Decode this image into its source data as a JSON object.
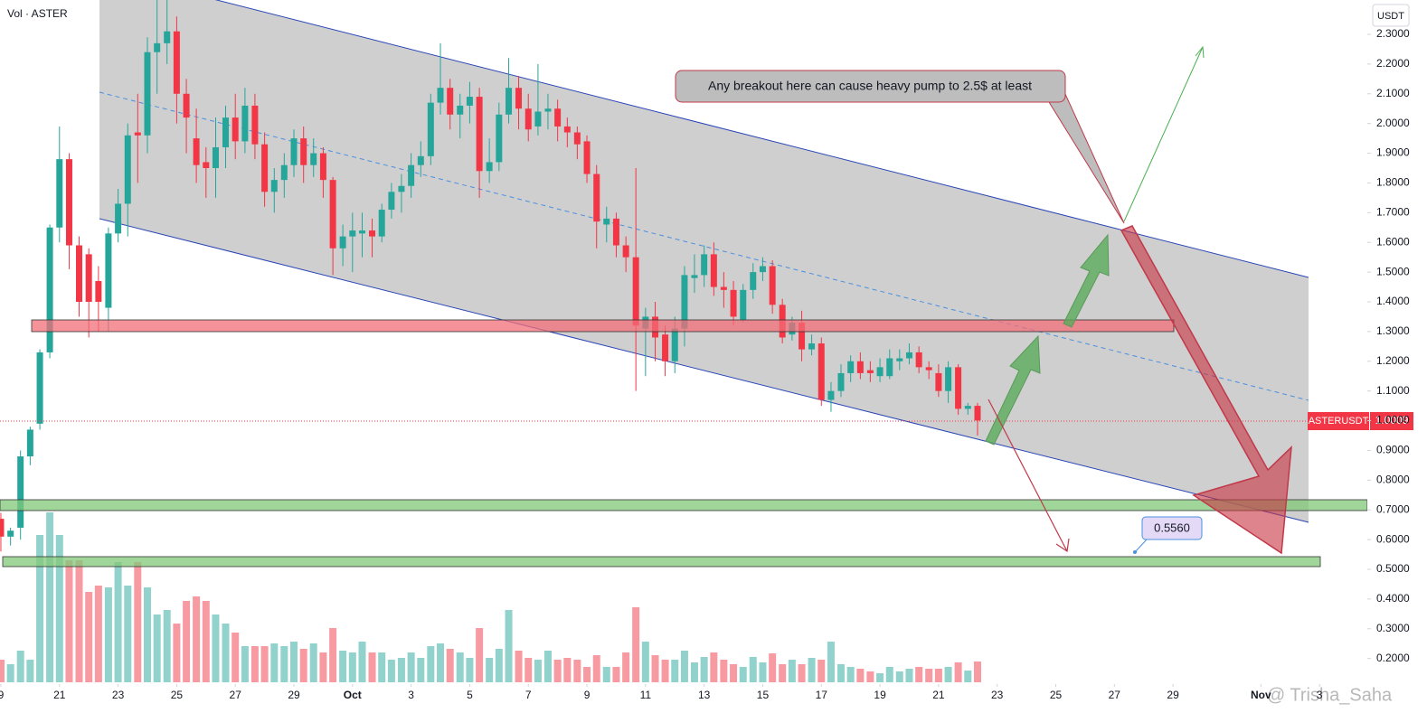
{
  "chart_data": {
    "type": "candlestick",
    "title": "Vol · ASTER",
    "y_axis_label": "USDT",
    "x": [
      19,
      19.33,
      19.67,
      20,
      20.33,
      20.67,
      21,
      21.33,
      21.67,
      22,
      22.33,
      22.67,
      23,
      23.33,
      23.67,
      24,
      24.33,
      24.67,
      25,
      25.33,
      25.67,
      26,
      26.33,
      26.67,
      27,
      27.33,
      27.67,
      28,
      28.33,
      28.67,
      29,
      29.33,
      29.67,
      30,
      30.33,
      30.67,
      31,
      31.33,
      31.67,
      32,
      32.33,
      32.67,
      33,
      33.33,
      33.67,
      34,
      34.33,
      34.67,
      35,
      35.33,
      35.67,
      36,
      36.33,
      36.67,
      37,
      37.33,
      37.67,
      38,
      38.33,
      38.67,
      39,
      39.33,
      39.67,
      40,
      40.33,
      40.67,
      41,
      41.33,
      41.67,
      42,
      42.33,
      42.67,
      43,
      43.33,
      43.67,
      44,
      44.33,
      44.67,
      45,
      45.33,
      45.67,
      46,
      46.33,
      46.67,
      47,
      47.33,
      47.67,
      48,
      48.33,
      48.67,
      49,
      49.33,
      49.67,
      50,
      50.33,
      50.67,
      51,
      51.33,
      51.67,
      52,
      52.33
    ],
    "open": [
      0.67,
      0.61,
      0.64,
      0.88,
      0.99,
      1.23,
      1.65,
      1.88,
      1.59,
      1.56,
      1.47,
      1.38,
      1.63,
      1.73,
      1.97,
      1.96,
      2.24,
      2.27,
      2.31,
      2.1,
      1.95,
      1.87,
      1.85,
      1.92,
      2.02,
      1.94,
      2.06,
      1.93,
      1.77,
      1.81,
      1.86,
      1.95,
      1.86,
      1.9,
      1.81,
      1.58,
      1.62,
      1.63,
      1.64,
      1.62,
      1.71,
      1.77,
      1.79,
      1.86,
      1.89,
      2.07,
      2.12,
      2.03,
      2.06,
      2.09,
      1.84,
      1.87,
      2.03,
      2.12,
      2.05,
      1.99,
      2.04,
      2.05,
      1.99,
      1.97,
      1.94,
      1.83,
      1.66,
      1.68,
      1.59,
      1.55,
      1.31,
      1.35,
      1.29,
      1.2,
      1.31,
      1.48,
      1.49,
      1.56,
      1.45,
      1.44,
      1.34,
      1.44,
      1.5,
      1.52,
      1.39,
      1.29,
      1.33,
      1.24,
      1.26,
      1.07,
      1.1,
      1.16,
      1.2,
      1.17,
      1.15,
      1.15,
      1.2,
      1.21,
      1.23,
      1.18,
      1.16,
      1.1,
      1.18,
      1.04,
      1.05
    ],
    "high": [
      0.69,
      0.64,
      0.9,
      0.98,
      1.24,
      1.66,
      1.99,
      1.9,
      1.62,
      1.58,
      1.52,
      1.65,
      1.78,
      2.0,
      2.1,
      2.29,
      2.43,
      2.42,
      2.36,
      2.15,
      2.05,
      1.92,
      2.02,
      2.06,
      2.1,
      2.12,
      2.1,
      1.97,
      1.85,
      1.9,
      1.98,
      1.99,
      1.95,
      1.92,
      1.82,
      1.66,
      1.7,
      1.7,
      1.68,
      1.73,
      1.8,
      1.83,
      1.9,
      1.94,
      2.1,
      2.27,
      2.15,
      2.1,
      2.14,
      2.12,
      1.95,
      2.07,
      2.22,
      2.16,
      2.1,
      2.2,
      2.1,
      2.08,
      2.02,
      1.99,
      1.96,
      1.86,
      1.72,
      1.7,
      1.62,
      1.85,
      1.38,
      1.4,
      1.32,
      1.35,
      1.52,
      1.56,
      1.59,
      1.6,
      1.5,
      1.47,
      1.46,
      1.53,
      1.55,
      1.54,
      1.41,
      1.35,
      1.37,
      1.29,
      1.28,
      1.13,
      1.19,
      1.22,
      1.23,
      1.2,
      1.21,
      1.24,
      1.24,
      1.26,
      1.25,
      1.2,
      1.19,
      1.2,
      1.19,
      1.06,
      1.06
    ],
    "low": [
      0.56,
      0.58,
      0.6,
      0.85,
      0.97,
      1.21,
      1.6,
      1.51,
      1.35,
      1.28,
      1.3,
      1.3,
      1.6,
      1.62,
      1.8,
      1.9,
      2.1,
      2.2,
      2.0,
      1.9,
      1.8,
      1.75,
      1.75,
      1.85,
      1.88,
      1.9,
      1.88,
      1.72,
      1.7,
      1.75,
      1.82,
      1.8,
      1.82,
      1.75,
      1.49,
      1.52,
      1.5,
      1.55,
      1.55,
      1.6,
      1.68,
      1.7,
      1.75,
      1.82,
      1.86,
      2.03,
      1.98,
      1.95,
      2.0,
      1.75,
      1.8,
      1.84,
      2.0,
      1.98,
      1.94,
      1.96,
      1.98,
      1.94,
      1.92,
      1.88,
      1.8,
      1.58,
      1.6,
      1.55,
      1.5,
      1.1,
      1.15,
      1.2,
      1.15,
      1.16,
      1.25,
      1.43,
      1.45,
      1.42,
      1.38,
      1.32,
      1.33,
      1.41,
      1.47,
      1.36,
      1.26,
      1.27,
      1.2,
      1.22,
      1.05,
      1.03,
      1.08,
      1.13,
      1.14,
      1.13,
      1.13,
      1.14,
      1.17,
      1.19,
      1.16,
      1.14,
      1.08,
      1.06,
      1.02,
      1.02,
      0.95
    ],
    "close": [
      0.61,
      0.63,
      0.88,
      0.97,
      1.23,
      1.65,
      1.88,
      1.59,
      1.4,
      1.4,
      1.4,
      1.63,
      1.73,
      1.96,
      1.96,
      2.24,
      2.27,
      2.31,
      2.1,
      2.02,
      1.86,
      1.85,
      1.92,
      2.02,
      1.94,
      2.06,
      1.93,
      1.77,
      1.81,
      1.86,
      1.95,
      1.86,
      1.9,
      1.81,
      1.58,
      1.62,
      1.64,
      1.64,
      1.62,
      1.71,
      1.77,
      1.79,
      1.86,
      1.89,
      2.07,
      2.12,
      2.03,
      2.06,
      2.09,
      1.84,
      1.87,
      2.03,
      2.12,
      2.05,
      1.98,
      2.04,
      2.05,
      1.99,
      1.97,
      1.93,
      1.83,
      1.67,
      1.68,
      1.59,
      1.55,
      1.32,
      1.35,
      1.28,
      1.2,
      1.31,
      1.49,
      1.49,
      1.56,
      1.45,
      1.44,
      1.35,
      1.44,
      1.5,
      1.52,
      1.39,
      1.28,
      1.33,
      1.24,
      1.26,
      1.07,
      1.1,
      1.16,
      1.2,
      1.16,
      1.16,
      1.18,
      1.21,
      1.21,
      1.23,
      1.18,
      1.17,
      1.1,
      1.18,
      1.04,
      1.05,
      1.0009
    ],
    "volume": [
      25,
      20,
      35,
      25,
      163,
      188,
      163,
      135,
      135,
      100,
      107,
      105,
      133,
      107,
      133,
      105,
      75,
      80,
      65,
      90,
      95,
      90,
      75,
      65,
      55,
      40,
      40,
      40,
      43,
      40,
      45,
      37,
      43,
      33,
      60,
      35,
      33,
      45,
      33,
      33,
      25,
      27,
      33,
      27,
      40,
      43,
      37,
      33,
      27,
      60,
      27,
      37,
      80,
      35,
      27,
      25,
      35,
      25,
      27,
      25,
      17,
      30,
      17,
      17,
      33,
      83,
      45,
      30,
      25,
      25,
      35,
      22,
      28,
      33,
      25,
      20,
      17,
      28,
      22,
      32,
      20,
      25,
      20,
      27,
      25,
      45,
      20,
      17,
      15,
      12,
      10,
      17,
      12,
      15,
      17,
      15,
      15,
      17,
      22,
      13,
      23
    ],
    "volume_lim": [
      0,
      200
    ],
    "up_color": "#26a69a",
    "down_color": "#f23645",
    "xlim": [
      18.97,
      65.57
    ],
    "xticks": [
      {
        "value": 19,
        "label": "9"
      },
      21,
      23,
      25,
      27,
      29,
      {
        "value": 31,
        "label": "Oct"
      },
      {
        "value": 33,
        "label": "3"
      },
      {
        "value": 35,
        "label": "5"
      },
      {
        "value": 37,
        "label": "7"
      },
      {
        "value": 39,
        "label": "9"
      },
      {
        "value": 41,
        "label": "11"
      },
      {
        "value": 43,
        "label": "13"
      },
      {
        "value": 45,
        "label": "15"
      },
      {
        "value": 47,
        "label": "17"
      },
      {
        "value": 49,
        "label": "19"
      },
      {
        "value": 51,
        "label": "21"
      },
      {
        "value": 53,
        "label": "23"
      },
      {
        "value": 55,
        "label": "25"
      },
      {
        "value": 57,
        "label": "27"
      },
      {
        "value": 59,
        "label": "29"
      },
      {
        "value": 62,
        "label": "Nov"
      },
      {
        "value": 64,
        "label": "3"
      }
    ],
    "ylim": [
      0.0166,
      2.4155
    ],
    "yticks": [
      {
        "value": 0.2,
        "label": "0.2000"
      },
      {
        "value": 0.3,
        "label": "0.3000"
      },
      {
        "value": 0.4,
        "label": "0.4000"
      },
      {
        "value": 0.5,
        "label": "0.5000"
      },
      {
        "value": 0.6,
        "label": "0.6000"
      },
      {
        "value": 0.7,
        "label": "0.7000"
      },
      {
        "value": 0.8,
        "label": "0.8000"
      },
      {
        "value": 0.9,
        "label": "0.9000"
      },
      {
        "value": 1.0,
        "label": "1.0000"
      },
      {
        "value": 1.1,
        "label": "1.1000"
      },
      {
        "value": 1.2,
        "label": "1.2000"
      },
      {
        "value": 1.3,
        "label": "1.3000"
      },
      {
        "value": 1.4,
        "label": "1.4000"
      },
      {
        "value": 1.5,
        "label": "1.5000"
      },
      {
        "value": 1.6,
        "label": "1.6000"
      },
      {
        "value": 1.7,
        "label": "1.7000"
      },
      {
        "value": 1.8,
        "label": "1.8000"
      },
      {
        "value": 1.9,
        "label": "1.9000"
      },
      {
        "value": 2.0,
        "label": "2.0000"
      },
      {
        "value": 2.1,
        "label": "2.1000"
      },
      {
        "value": 2.2,
        "label": "2.2000"
      },
      {
        "value": 2.3,
        "label": "2.3000"
      }
    ],
    "grid": false,
    "last_price": {
      "symbol": "ASTERUSDT",
      "value": 1.0009
    },
    "annotations": [
      "Any breakout here can cause heavy pump to 2.5$ at least",
      "0.5560"
    ],
    "watermark": "@ Trisha_Saha"
  }
}
